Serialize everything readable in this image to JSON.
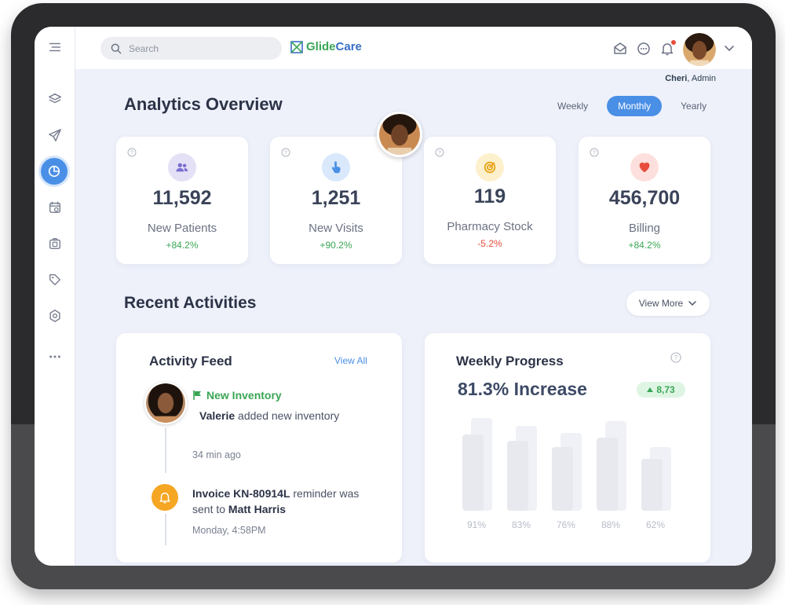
{
  "topbar": {
    "search_placeholder": "Search",
    "logo_part1": "Glide",
    "logo_part2": "Care",
    "user_name": "Cheri",
    "user_role": ", Admin",
    "icons": [
      "mail-icon",
      "chat-icon",
      "bell-icon",
      "avatar",
      "chevron-down-icon"
    ]
  },
  "sidebar": {
    "items": [
      "menu-icon",
      "layers-icon",
      "send-icon",
      "analytics-icon",
      "calendar-icon",
      "camera-icon",
      "tag-icon",
      "settings-icon",
      "more-icon"
    ],
    "active": "analytics-icon"
  },
  "analytics": {
    "title": "Analytics Overview",
    "tabs": [
      {
        "label": "Weekly",
        "active": false
      },
      {
        "label": "Monthly",
        "active": true
      },
      {
        "label": "Yearly",
        "active": false
      }
    ],
    "stats": [
      {
        "value": "11,592",
        "label": "New Patients",
        "change": "+84.2%",
        "trend": "up",
        "icon": "users-icon",
        "icon_bg": "#e4e1f6",
        "icon_color": "#7b6fd0"
      },
      {
        "value": "1,251",
        "label": "New Visits",
        "change": "+90.2%",
        "trend": "up",
        "icon": "pointer-icon",
        "icon_bg": "#d9e8fb",
        "icon_color": "#4a8fe6"
      },
      {
        "value": "119",
        "label": "Pharmacy Stock",
        "change": "-5.2%",
        "trend": "down",
        "icon": "target-icon",
        "icon_bg": "#fdf0cc",
        "icon_color": "#e8a317"
      },
      {
        "value": "456,700",
        "label": "Billing",
        "change": "+84.2%",
        "trend": "up",
        "icon": "heart-icon",
        "icon_bg": "#fde0dd",
        "icon_color": "#e74c3c"
      }
    ]
  },
  "recent": {
    "title": "Recent Activities",
    "view_more": "View More"
  },
  "feed": {
    "title": "Activity Feed",
    "view_all": "View All",
    "item1_heading": "New Inventory",
    "item1_name": "Valerie",
    "item1_text": " added new inventory",
    "item1_time": "34  min ago",
    "item2_pre": "Invoice KN-80914L",
    "item2_mid": " reminder was sent to ",
    "item2_name": "Matt Harris",
    "item2_time": "Monday, 4:58PM"
  },
  "progress": {
    "title": "Weekly Progress",
    "headline": "81.3% Increase",
    "badge": "8,73"
  },
  "chart_data": {
    "type": "bar",
    "categories": [
      "",
      "",
      "",
      "",
      ""
    ],
    "values": [
      91,
      83,
      76,
      88,
      62
    ],
    "labels": [
      "91%",
      "83%",
      "76%",
      "88%",
      "62%"
    ],
    "ylim": [
      0,
      100
    ]
  },
  "colors": {
    "accent": "#4a8fe6",
    "positive": "#3aa655",
    "negative": "#e74c3c",
    "warning": "#f5a623"
  }
}
